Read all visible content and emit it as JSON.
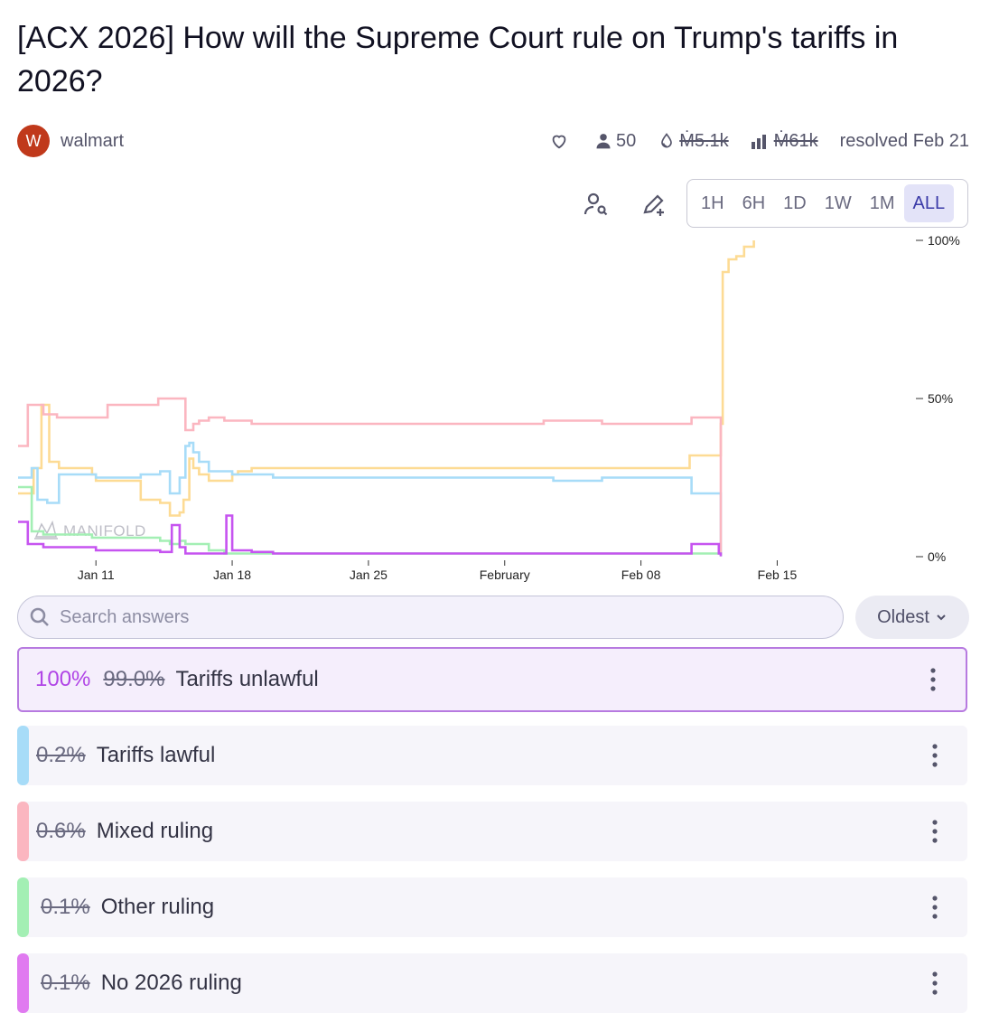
{
  "question": {
    "title": "[ACX 2026] How will the Supreme Court rule on Trump's tariffs in 2026?"
  },
  "creator": {
    "avatar_letter": "W",
    "name": "walmart"
  },
  "stats": {
    "traders": "50",
    "liquidity": "Ṁ5.1k",
    "volume": "Ṁ61k",
    "resolved": "resolved Feb 21"
  },
  "icons": {
    "heart": "heart-icon",
    "traders": "user-icon",
    "liquidity": "droplet-icon",
    "volume": "bar-chart-icon",
    "user_search": "user-search-icon",
    "edit": "pencil-plus-icon",
    "search": "search-icon",
    "sort": "chevron-down-icon",
    "more": "kebab-icon"
  },
  "time_ranges": [
    "1H",
    "6H",
    "1D",
    "1W",
    "1M",
    "ALL"
  ],
  "active_range": "ALL",
  "watermark": "MANIFOLD",
  "chart_data": {
    "type": "line",
    "x_ticks": [
      "Jan 11",
      "Jan 18",
      "Jan 25",
      "February",
      "Feb 08",
      "Feb 15"
    ],
    "y_ticks": [
      "100%",
      "50%",
      "0%"
    ],
    "ylim": [
      0,
      100
    ],
    "series": [
      {
        "name": "Tariffs unlawful",
        "color": "#fddb94",
        "points": [
          [
            0,
            20
          ],
          [
            0.8,
            28
          ],
          [
            1.2,
            48
          ],
          [
            1.6,
            30
          ],
          [
            2.1,
            28
          ],
          [
            3.8,
            26
          ],
          [
            4.0,
            24
          ],
          [
            5.8,
            24
          ],
          [
            6.3,
            18
          ],
          [
            7.3,
            17
          ],
          [
            7.8,
            13
          ],
          [
            8.3,
            14
          ],
          [
            8.5,
            18
          ],
          [
            8.8,
            31
          ],
          [
            9.0,
            28
          ],
          [
            9.3,
            26
          ],
          [
            9.8,
            24
          ],
          [
            10.6,
            24
          ],
          [
            11.0,
            26
          ],
          [
            11.3,
            27
          ],
          [
            12.0,
            28
          ],
          [
            13.1,
            28
          ],
          [
            14.0,
            28
          ],
          [
            16.0,
            28
          ],
          [
            20.0,
            28
          ],
          [
            27.0,
            28
          ],
          [
            30.0,
            28
          ],
          [
            31.0,
            28
          ],
          [
            34.3,
            28
          ],
          [
            34.5,
            32
          ],
          [
            36.0,
            32
          ],
          [
            36.1,
            42
          ],
          [
            36.2,
            90
          ],
          [
            36.5,
            94
          ],
          [
            36.9,
            95
          ],
          [
            37.3,
            98
          ],
          [
            37.8,
            100
          ]
        ]
      },
      {
        "name": "Tariffs lawful",
        "color": "#a7dcf8",
        "points": [
          [
            0,
            25
          ],
          [
            0.7,
            28
          ],
          [
            1.0,
            18
          ],
          [
            1.5,
            17
          ],
          [
            2.1,
            26
          ],
          [
            3.8,
            26
          ],
          [
            4.0,
            25
          ],
          [
            5.8,
            25
          ],
          [
            6.3,
            26
          ],
          [
            7.3,
            27
          ],
          [
            7.8,
            20
          ],
          [
            8.3,
            25
          ],
          [
            8.6,
            35
          ],
          [
            8.8,
            36
          ],
          [
            9.0,
            33
          ],
          [
            9.3,
            30
          ],
          [
            9.8,
            27
          ],
          [
            10.6,
            27
          ],
          [
            11.0,
            26
          ],
          [
            12.0,
            26
          ],
          [
            13.1,
            25
          ],
          [
            14.0,
            25
          ],
          [
            16.0,
            25
          ],
          [
            20.0,
            25
          ],
          [
            27.0,
            25
          ],
          [
            27.5,
            24
          ],
          [
            30.0,
            25
          ],
          [
            31.0,
            25
          ],
          [
            34.3,
            25
          ],
          [
            34.6,
            20
          ],
          [
            36.0,
            20
          ],
          [
            36.1,
            0.2
          ]
        ]
      },
      {
        "name": "Mixed ruling",
        "color": "#fbb6c0",
        "points": [
          [
            0,
            35
          ],
          [
            0.5,
            48
          ],
          [
            1.3,
            45
          ],
          [
            2.0,
            44
          ],
          [
            3.4,
            44
          ],
          [
            4.6,
            48
          ],
          [
            5.8,
            48
          ],
          [
            7.2,
            50
          ],
          [
            8.3,
            50
          ],
          [
            8.6,
            40
          ],
          [
            9.0,
            42
          ],
          [
            9.3,
            43
          ],
          [
            9.8,
            44
          ],
          [
            10.6,
            43
          ],
          [
            11.0,
            43
          ],
          [
            12.0,
            42
          ],
          [
            13.1,
            42
          ],
          [
            14.0,
            42
          ],
          [
            16.0,
            42
          ],
          [
            20.0,
            42
          ],
          [
            27.0,
            43
          ],
          [
            30.0,
            42
          ],
          [
            31.0,
            42
          ],
          [
            34.3,
            42
          ],
          [
            34.6,
            44
          ],
          [
            36.0,
            44
          ],
          [
            36.1,
            0.6
          ]
        ]
      },
      {
        "name": "Other ruling",
        "color": "#a3efb4",
        "points": [
          [
            0,
            22
          ],
          [
            0.7,
            8
          ],
          [
            1.3,
            7
          ],
          [
            3.8,
            6
          ],
          [
            4.0,
            6
          ],
          [
            7.3,
            5
          ],
          [
            7.8,
            4
          ],
          [
            8.3,
            5
          ],
          [
            8.6,
            4
          ],
          [
            9.8,
            2
          ],
          [
            10.6,
            1
          ],
          [
            12.0,
            1
          ],
          [
            13.1,
            1
          ],
          [
            16.0,
            1
          ],
          [
            20.0,
            1
          ],
          [
            27.0,
            1
          ],
          [
            30.0,
            1
          ],
          [
            31.0,
            1
          ],
          [
            34.3,
            1
          ],
          [
            36.0,
            1
          ],
          [
            36.1,
            0.1
          ]
        ]
      },
      {
        "name": "No 2026 ruling",
        "color": "#c654f0",
        "points": [
          [
            0,
            11
          ],
          [
            0.5,
            4
          ],
          [
            1.3,
            3
          ],
          [
            3.8,
            3
          ],
          [
            4.0,
            2
          ],
          [
            7.3,
            1.5
          ],
          [
            7.9,
            10
          ],
          [
            8.3,
            3
          ],
          [
            8.6,
            1
          ],
          [
            10.6,
            1
          ],
          [
            10.7,
            13
          ],
          [
            11.0,
            2
          ],
          [
            12.0,
            1.5
          ],
          [
            13.1,
            1
          ],
          [
            16.0,
            1
          ],
          [
            20.0,
            1
          ],
          [
            27.0,
            1
          ],
          [
            30.0,
            1
          ],
          [
            31.0,
            1
          ],
          [
            34.3,
            1
          ],
          [
            34.6,
            4
          ],
          [
            35.6,
            4
          ],
          [
            36.0,
            1
          ],
          [
            36.1,
            0.1
          ]
        ]
      }
    ]
  },
  "search": {
    "placeholder": "Search answers",
    "value": ""
  },
  "sort": {
    "label": "Oldest"
  },
  "answers": [
    {
      "text": "Tariffs unlawful",
      "prob": "100%",
      "prob_before": "99.0%",
      "color": "#b044e6"
    },
    {
      "text": "Tariffs lawful",
      "prob_before": "0.2%",
      "color": "#a7dcf8"
    },
    {
      "text": "Mixed ruling",
      "prob_before": "0.6%",
      "color": "#fbb6c0"
    },
    {
      "text": "Other ruling",
      "prob_before": "0.1%",
      "color": "#a3efb4"
    },
    {
      "text": "No 2026 ruling",
      "prob_before": "0.1%",
      "color": "#e07af0"
    }
  ]
}
